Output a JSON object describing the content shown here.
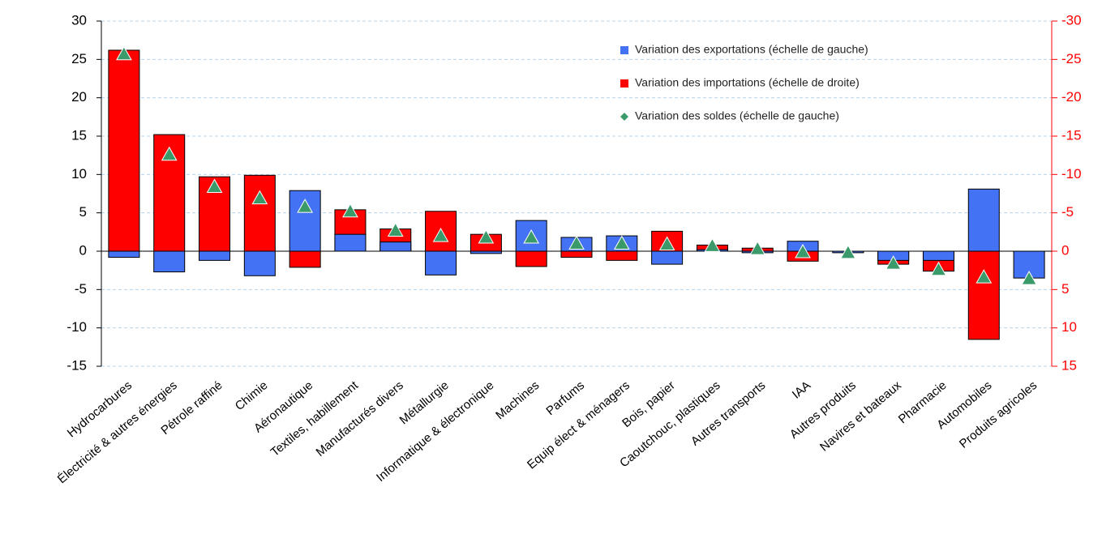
{
  "chart_data": {
    "type": "bar",
    "categories": [
      "Hydrocarbures",
      "Électricité & autres énergies",
      "Pétrole raffiné",
      "Chimie",
      "Aéronautique",
      "Textiles, habillement",
      "Manufacturés divers",
      "Métallurgie",
      "Informatique & électronique",
      "Machines",
      "Parfums",
      "Equip élect & ménagers",
      "Bois, papier",
      "Caoutchouc, plastiques",
      "Autres transports",
      "IAA",
      "Autres produits",
      "Navires et bateaux",
      "Pharmacie",
      "Automobiles",
      "Produits agricoles"
    ],
    "series": [
      {
        "name": "Variation des importations (échelle de droite)",
        "color": "#ff0000",
        "axis": "y2",
        "values": [
          -26.2,
          -15.2,
          -9.7,
          -9.9,
          2.1,
          -5.4,
          -2.9,
          -5.2,
          -2.2,
          2.0,
          0.8,
          1.2,
          -2.6,
          -0.8,
          -0.4,
          1.3,
          0.1,
          1.7,
          2.6,
          11.5,
          0.2
        ]
      },
      {
        "name": "Variation des exportations (échelle de gauche)",
        "color": "#4472f4",
        "values": [
          -0.8,
          -2.7,
          -1.2,
          -3.2,
          7.9,
          2.2,
          1.2,
          -3.1,
          -0.3,
          4.0,
          1.8,
          2.0,
          -1.7,
          0.2,
          -0.2,
          1.3,
          -0.2,
          -1.2,
          -1.2,
          8.1,
          -3.5
        ]
      },
      {
        "name": "Variation des soldes (échelle de gauche)",
        "color": "#3a9a6a",
        "values": [
          25.7,
          12.6,
          8.4,
          6.9,
          5.8,
          5.2,
          2.7,
          2.0,
          1.8,
          1.8,
          1.0,
          1.0,
          0.9,
          0.7,
          0.3,
          -0.1,
          -0.2,
          -1.6,
          -2.4,
          -3.4,
          -3.6
        ]
      }
    ],
    "ylim": [
      -15,
      30
    ],
    "yticks": [
      -15,
      -10,
      -5,
      0,
      5,
      10,
      15,
      20,
      25,
      30
    ],
    "y2lim": [
      15,
      -30
    ],
    "y2ticks": [
      15,
      10,
      5,
      0,
      -5,
      -10,
      -15,
      -20,
      -25,
      -30
    ],
    "y2color": "#ff0000",
    "grid": true
  }
}
